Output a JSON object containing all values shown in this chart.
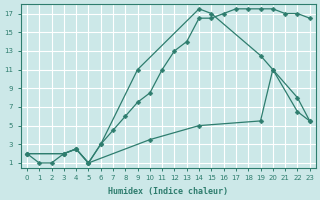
{
  "bg_color": "#cce8e8",
  "line_color": "#2e7d6e",
  "grid_color": "#ffffff",
  "xlabel": "Humidex (Indice chaleur)",
  "xlim": [
    -0.5,
    23.5
  ],
  "ylim": [
    0.5,
    18
  ],
  "xticks": [
    0,
    1,
    2,
    3,
    4,
    5,
    6,
    7,
    8,
    9,
    10,
    11,
    12,
    13,
    14,
    15,
    16,
    17,
    18,
    19,
    20,
    21,
    22,
    23
  ],
  "yticks": [
    1,
    3,
    5,
    7,
    9,
    11,
    13,
    15,
    17
  ],
  "curve1_x": [
    0,
    1,
    2,
    3,
    4,
    5,
    6,
    7,
    8,
    9,
    10,
    11,
    12,
    13,
    14,
    15,
    16,
    17,
    18,
    19,
    20,
    21,
    22,
    23
  ],
  "curve1_y": [
    2,
    1,
    1,
    2,
    2.5,
    1,
    3,
    4.5,
    6,
    7.5,
    8.5,
    11,
    13,
    14,
    16.5,
    16.5,
    17,
    17.5,
    17.5,
    17.5,
    17.5,
    17,
    17,
    16.5
  ],
  "curve2_x": [
    0,
    3,
    4,
    5,
    6,
    9,
    14,
    15,
    19,
    20,
    22,
    23
  ],
  "curve2_y": [
    2,
    2,
    2.5,
    1,
    3,
    11,
    17.5,
    17,
    12.5,
    11,
    6.5,
    5.5
  ],
  "curve3_x": [
    0,
    3,
    4,
    5,
    10,
    14,
    19,
    20,
    22,
    23
  ],
  "curve3_y": [
    2,
    2,
    2.5,
    1,
    3.5,
    5,
    5.5,
    11,
    8,
    5.5
  ]
}
